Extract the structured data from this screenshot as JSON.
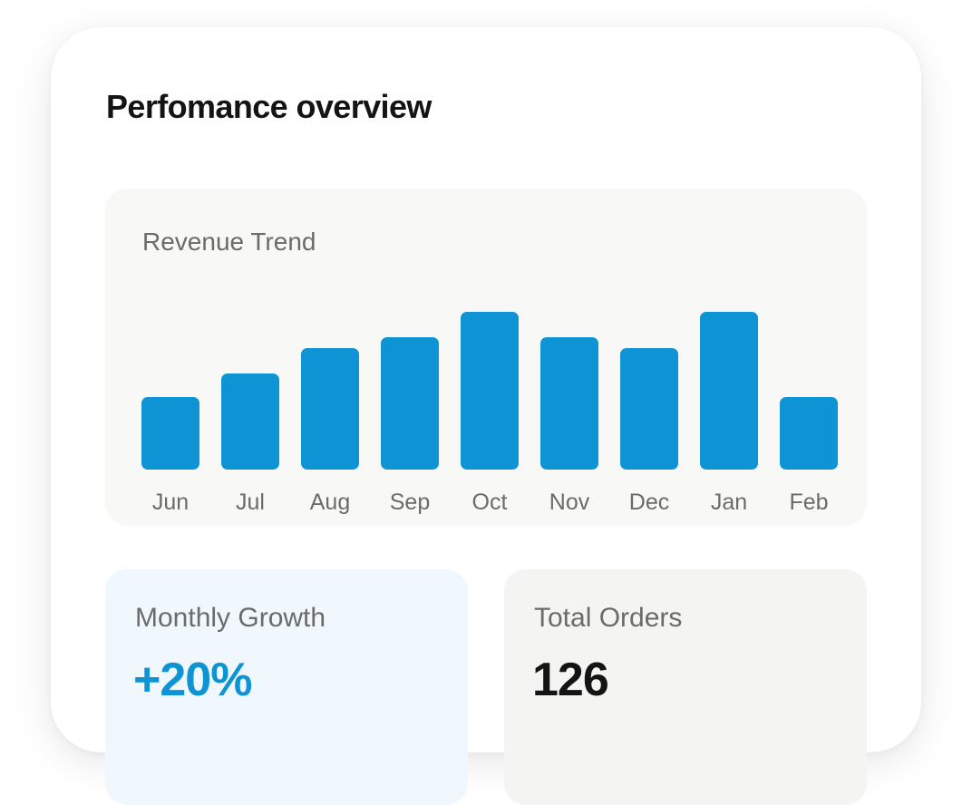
{
  "header": {
    "title": "Perfomance overview"
  },
  "colors": {
    "accent": "#0e94d4",
    "chart_panel_bg": "#f8f8f6",
    "growth_bg": "#f0f7fd",
    "orders_bg": "#f4f4f2",
    "muted_text": "#6b6b6b"
  },
  "chart_data": {
    "type": "bar",
    "title": "Revenue Trend",
    "categories": [
      "Jun",
      "Jul",
      "Aug",
      "Sep",
      "Oct",
      "Nov",
      "Dec",
      "Jan",
      "Feb"
    ],
    "values": [
      80,
      106,
      134,
      146,
      174,
      146,
      134,
      174,
      80
    ],
    "ylim": [
      0,
      174
    ],
    "xlabel": "",
    "ylabel": "",
    "grid": false,
    "legend": "none",
    "color": "#0e94d4"
  },
  "stats": {
    "growth": {
      "label": "Monthly Growth",
      "value": "+20%"
    },
    "orders": {
      "label": "Total Orders",
      "value": "126"
    }
  }
}
